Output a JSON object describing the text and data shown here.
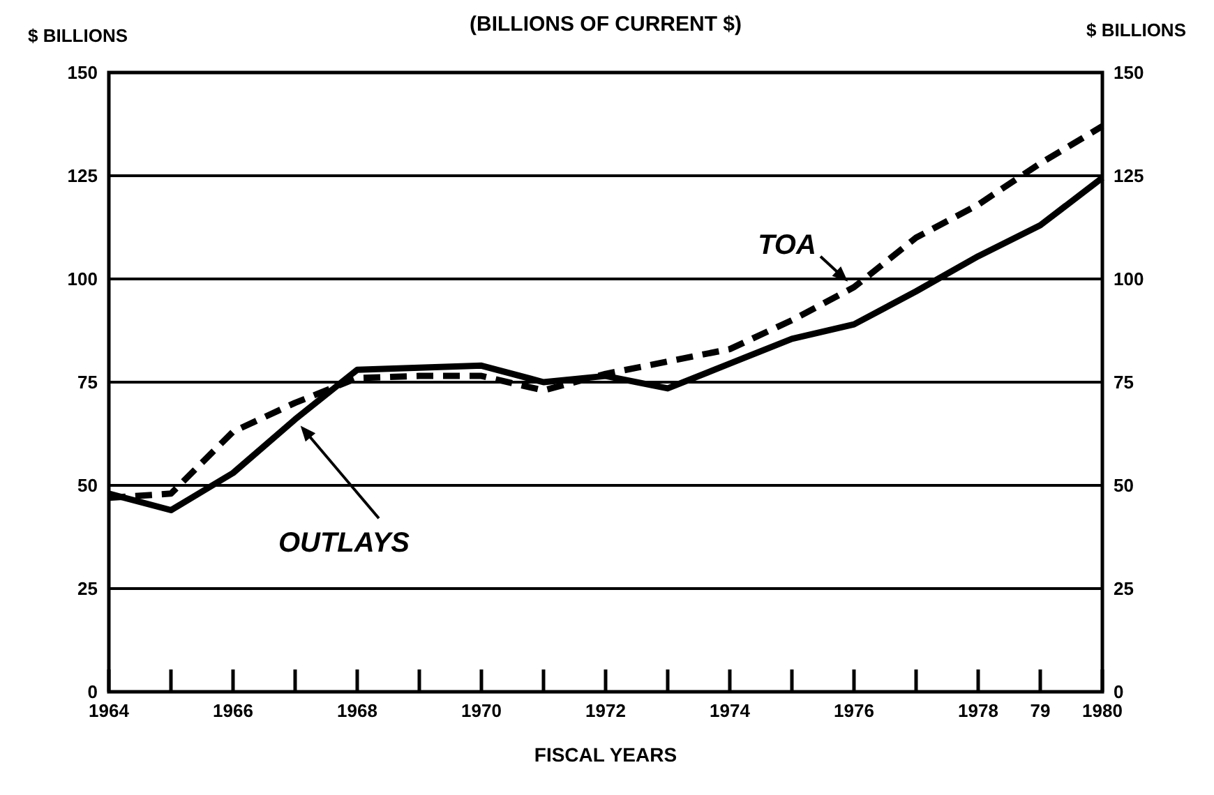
{
  "chart_data": {
    "type": "line",
    "title": "(BILLIONS OF CURRENT $)",
    "xlabel": "FISCAL YEARS",
    "ylabel": "$ BILLIONS",
    "y2label": "$ BILLIONS",
    "x": [
      1964,
      1965,
      1966,
      1967,
      1968,
      1969,
      1970,
      1971,
      1972,
      1973,
      1974,
      1975,
      1976,
      1977,
      1978,
      1979,
      1980
    ],
    "series": [
      {
        "name": "OUTLAYS",
        "color": "#000000",
        "line_style": "solid",
        "values": [
          48,
          44,
          53,
          66,
          78,
          78.5,
          79,
          75,
          76.5,
          73.5,
          79.5,
          85.5,
          89,
          97,
          105.5,
          113,
          124.5
        ]
      },
      {
        "name": "TOA",
        "color": "#000000",
        "line_style": "dashed",
        "values": [
          47,
          48,
          63,
          70,
          76,
          76.5,
          76.5,
          73,
          77,
          80,
          83,
          90,
          98,
          110,
          118,
          128,
          137
        ]
      }
    ],
    "xlim": [
      1964,
      1980
    ],
    "xticks": [
      1964,
      {
        "value": 1965,
        "label": null
      },
      1966,
      {
        "value": 1967,
        "label": null
      },
      1968,
      {
        "value": 1969,
        "label": null
      },
      1970,
      {
        "value": 1971,
        "label": null
      },
      1972,
      {
        "value": 1973,
        "label": null
      },
      1974,
      {
        "value": 1975,
        "label": null
      },
      1976,
      {
        "value": 1977,
        "label": null
      },
      1978,
      {
        "value": 1979,
        "label": "79"
      },
      1980
    ],
    "ylim": [
      0,
      150
    ],
    "yticks": [
      0,
      25,
      50,
      75,
      100,
      125,
      150
    ],
    "y2lim": [
      0,
      150
    ],
    "y2ticks": [
      0,
      25,
      50,
      75,
      100,
      125,
      150
    ],
    "grid": "y",
    "marker": "none"
  }
}
